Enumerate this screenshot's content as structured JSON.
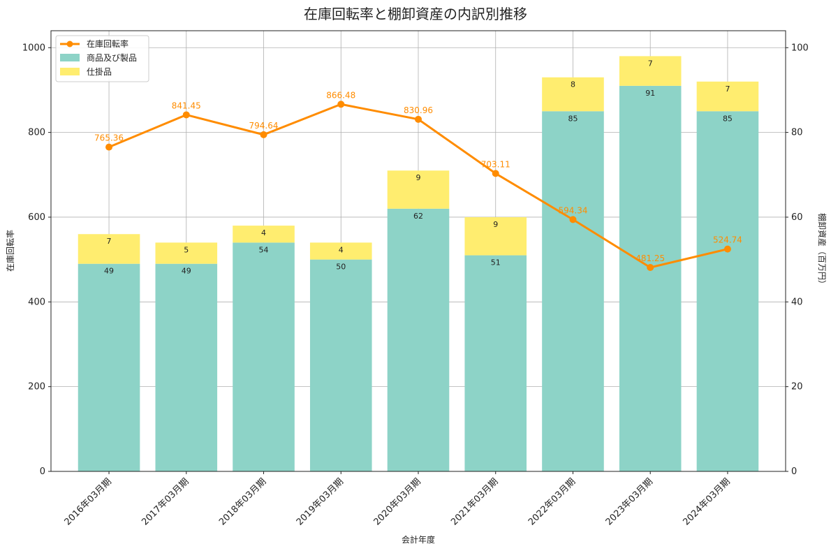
{
  "chart_data": {
    "type": "bar",
    "title": "在庫回転率と棚卸資産の内訳別推移",
    "xlabel": "会計年度",
    "ylabel_left": "在庫回転率",
    "ylabel_right": "棚卸資産（百万円）",
    "ylim_left": [
      0,
      1040
    ],
    "ylim_right": [
      0,
      104
    ],
    "yticks_left": [
      0,
      200,
      400,
      600,
      800,
      1000
    ],
    "yticks_right": [
      0,
      20,
      40,
      60,
      80,
      100
    ],
    "grid": true,
    "legend_position": "top-left",
    "categories": [
      "2016年03月期",
      "2017年03月期",
      "2018年03月期",
      "2019年03月期",
      "2020年03月期",
      "2021年03月期",
      "2022年03月期",
      "2023年03月期",
      "2024年03月期"
    ],
    "series": [
      {
        "name": "商品及び製品",
        "type": "bar",
        "axis": "right",
        "color": "#8dd3c7",
        "values": [
          49,
          49,
          54,
          50,
          62,
          51,
          85,
          91,
          85
        ],
        "labels": [
          "49",
          "49",
          "54",
          "50",
          "62",
          "51",
          "85",
          "91",
          "85"
        ]
      },
      {
        "name": "仕掛品",
        "type": "bar",
        "axis": "right",
        "color": "#ffed6f",
        "values": [
          7,
          5,
          4,
          4,
          9,
          9,
          8,
          7,
          7
        ],
        "labels": [
          "7",
          "5",
          "4",
          "4",
          "9",
          "9",
          "8",
          "7",
          "7"
        ]
      },
      {
        "name": "在庫回転率",
        "type": "line",
        "axis": "left",
        "color": "#ff8c00",
        "values": [
          765.36,
          841.45,
          794.64,
          866.48,
          830.96,
          703.11,
          594.34,
          481.25,
          524.74
        ],
        "labels": [
          "765.36",
          "841.45",
          "794.64",
          "866.48",
          "830.96",
          "703.11",
          "594.34",
          "481.25",
          "524.74"
        ]
      }
    ],
    "legend": [
      {
        "name": "在庫回転率",
        "kind": "line",
        "color": "#ff8c00"
      },
      {
        "name": "商品及び製品",
        "kind": "bar",
        "color": "#8dd3c7"
      },
      {
        "name": "仕掛品",
        "kind": "bar",
        "color": "#ffed6f"
      }
    ]
  }
}
